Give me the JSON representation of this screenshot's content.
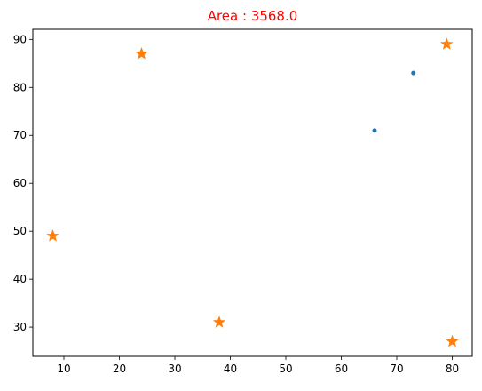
{
  "chart_data": {
    "type": "scatter",
    "title": "Area : 3568.0",
    "title_color": "#ff0000",
    "xlabel": "",
    "ylabel": "",
    "xlim": [
      4.4,
      83.6
    ],
    "ylim": [
      23.9,
      92.1
    ],
    "x_ticks": [
      10,
      20,
      30,
      40,
      50,
      60,
      70,
      80
    ],
    "y_ticks": [
      30,
      40,
      50,
      60,
      70,
      80,
      90
    ],
    "grid": false,
    "legend": "none",
    "series": [
      {
        "marker": "dot",
        "color": "#1f77b4",
        "points": [
          {
            "x": 66,
            "y": 71
          },
          {
            "x": 73,
            "y": 83
          }
        ]
      },
      {
        "marker": "star",
        "color": "#ff7f0e",
        "points": [
          {
            "x": 8,
            "y": 49
          },
          {
            "x": 24,
            "y": 87
          },
          {
            "x": 38,
            "y": 31
          },
          {
            "x": 79,
            "y": 89
          },
          {
            "x": 80,
            "y": 27
          }
        ]
      }
    ]
  }
}
